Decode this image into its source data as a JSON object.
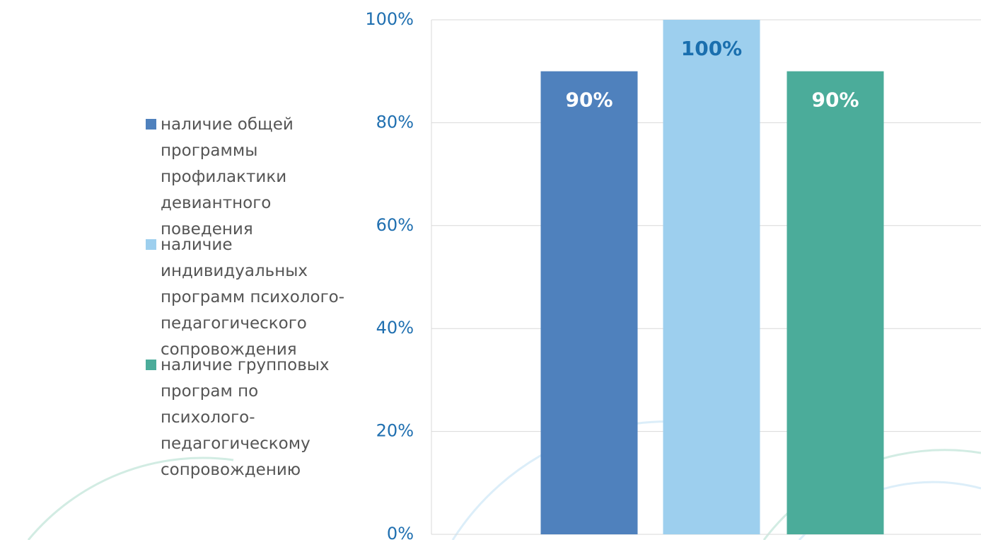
{
  "chart_data": {
    "type": "bar",
    "categories": [
      null
    ],
    "series": [
      {
        "name": "наличие общей программы профилактики девиантного поведения",
        "color": "#4f81bd",
        "values": [
          90
        ],
        "value_labels": [
          "90%"
        ],
        "value_label_color": "#ffffff"
      },
      {
        "name": "наличие индивидуальных программ психолого-педагогического сопровождения",
        "color": "#9dcfee",
        "values": [
          100
        ],
        "value_labels": [
          "100%"
        ],
        "value_label_color": "#1a6fae"
      },
      {
        "name": "наличие групповых програм по психолого-педагогическому сопровождению",
        "color": "#4bac9a",
        "values": [
          90
        ],
        "value_labels": [
          "90%"
        ],
        "value_label_color": "#ffffff"
      }
    ],
    "ylim": [
      0,
      100
    ],
    "yticks": [
      {
        "value": 0,
        "label": "0%"
      },
      {
        "value": 20,
        "label": "20%"
      },
      {
        "value": 40,
        "label": "40%"
      },
      {
        "value": 60,
        "label": "60%"
      },
      {
        "value": 80,
        "label": "80%"
      },
      {
        "value": 100,
        "label": "100%"
      }
    ],
    "grid": true,
    "legend": "left"
  }
}
